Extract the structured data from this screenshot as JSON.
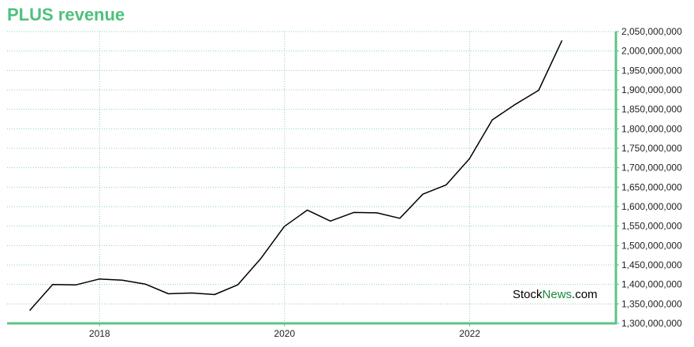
{
  "title": "PLUS revenue",
  "watermark": {
    "part1": "Stock",
    "part2": "News",
    "part3": ".com"
  },
  "colors": {
    "title": "#4fc07d",
    "axis": "#5cc38a",
    "grid": "#8fd1a8",
    "line": "#000000",
    "brand_green": "#188a3c"
  },
  "chart_data": {
    "type": "line",
    "title": "PLUS revenue",
    "xlabel": "",
    "ylabel": "",
    "grid": true,
    "y_axis_side": "right",
    "xlim": [
      "2017-01-01",
      "2023-08-01"
    ],
    "ylim": [
      1300000000,
      2050000000
    ],
    "x_ticks": [
      {
        "value": "2018-01-01",
        "label": "2018"
      },
      {
        "value": "2020-01-01",
        "label": "2020"
      },
      {
        "value": "2022-01-01",
        "label": "2022"
      }
    ],
    "y_ticks": [
      {
        "value": 1300000000,
        "label": "1,300,000,000"
      },
      {
        "value": 1350000000,
        "label": "1,350,000,000"
      },
      {
        "value": 1400000000,
        "label": "1,400,000,000"
      },
      {
        "value": 1450000000,
        "label": "1,450,000,000"
      },
      {
        "value": 1500000000,
        "label": "1,500,000,000"
      },
      {
        "value": 1550000000,
        "label": "1,550,000,000"
      },
      {
        "value": 1600000000,
        "label": "1,600,000,000"
      },
      {
        "value": 1650000000,
        "label": "1,650,000,000"
      },
      {
        "value": 1700000000,
        "label": "1,700,000,000"
      },
      {
        "value": 1750000000,
        "label": "1,750,000,000"
      },
      {
        "value": 1800000000,
        "label": "1,800,000,000"
      },
      {
        "value": 1850000000,
        "label": "1,850,000,000"
      },
      {
        "value": 1900000000,
        "label": "1,900,000,000"
      },
      {
        "value": 1950000000,
        "label": "1,950,000,000"
      },
      {
        "value": 2000000000,
        "label": "2,000,000,000"
      },
      {
        "value": 2050000000,
        "label": "2,050,000,000"
      }
    ],
    "series": [
      {
        "x": [
          "2017-03-31",
          "2017-06-30",
          "2017-09-30",
          "2017-12-31",
          "2018-03-31",
          "2018-06-30",
          "2018-09-30",
          "2018-12-31",
          "2019-03-31",
          "2019-06-30",
          "2019-09-30",
          "2019-12-31",
          "2020-03-31",
          "2020-06-30",
          "2020-09-30",
          "2020-12-31",
          "2021-03-31",
          "2021-06-30",
          "2021-09-30",
          "2021-12-31",
          "2022-03-31",
          "2022-06-30",
          "2022-09-30",
          "2022-12-31"
        ],
        "values": [
          1333000000,
          1400000000,
          1399000000,
          1414000000,
          1411000000,
          1401000000,
          1376000000,
          1378000000,
          1374000000,
          1399000000,
          1467000000,
          1549000000,
          1591000000,
          1563000000,
          1585000000,
          1584000000,
          1570000000,
          1632000000,
          1656000000,
          1723000000,
          1823000000,
          1863000000,
          1899000000,
          2027000000
        ]
      }
    ]
  }
}
